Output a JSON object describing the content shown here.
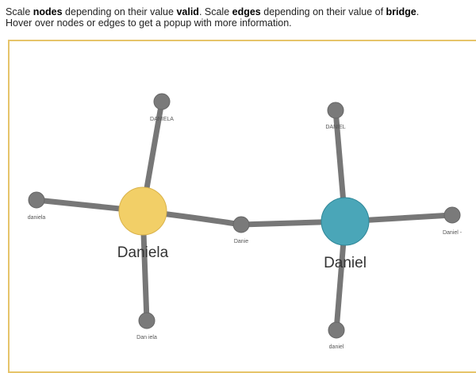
{
  "instructions": {
    "line1_part1": "Scale ",
    "line1_bold1": "nodes",
    "line1_part2": " depending on their value ",
    "line1_bold2": "valid",
    "line1_part3": ". Scale ",
    "line1_bold3": "edges",
    "line1_part4": " depending on their value of ",
    "line1_bold4": "bridge",
    "line1_part5": ".",
    "line2": "Hover over nodes or edges to get a popup with more information."
  },
  "colors": {
    "frame_border": "#e6c46a",
    "hub_daniela": "#f2cf67",
    "hub_daniel": "#4aa6b8",
    "leaf": "#7a7a7a",
    "edge": "#777777"
  },
  "graph": {
    "hubs": [
      {
        "id": "daniela-hub",
        "label": "Daniela",
        "color": "#f2cf67"
      },
      {
        "id": "daniel-hub",
        "label": "Daniel",
        "color": "#4aa6b8"
      }
    ],
    "leaves": [
      {
        "id": "leaf-daniela-upper",
        "label": "DANIELA"
      },
      {
        "id": "leaf-daniela-lower",
        "label": "daniela"
      },
      {
        "id": "leaf-dan-iela",
        "label": "Dan iela"
      },
      {
        "id": "leaf-danie",
        "label": "Danie"
      },
      {
        "id": "leaf-daniel-upper",
        "label": "DANIEL"
      },
      {
        "id": "leaf-daniel-dash",
        "label": "Daniel -"
      },
      {
        "id": "leaf-daniel-lower",
        "label": "daniel"
      }
    ]
  }
}
